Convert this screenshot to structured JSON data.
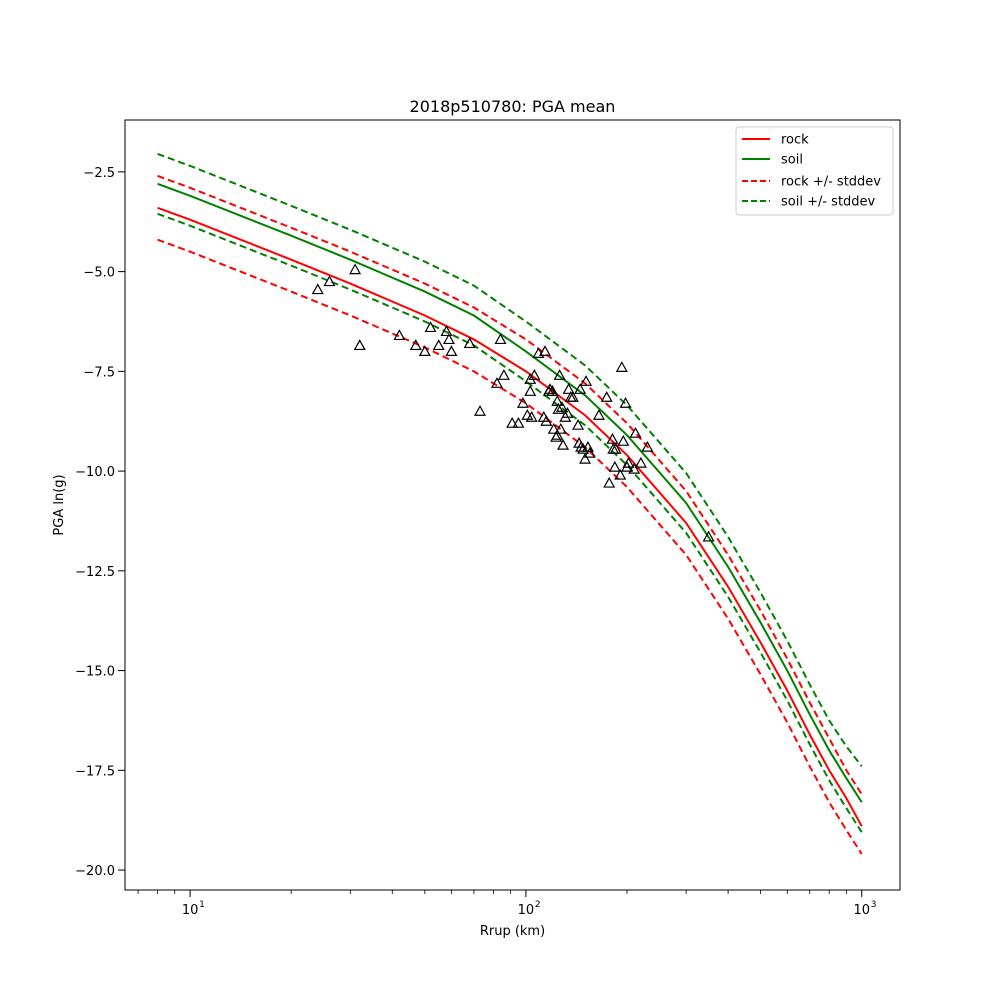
{
  "chart_data": {
    "type": "scatter",
    "title": "2018p510780: PGA mean",
    "xlabel": "Rrup (km)",
    "ylabel": "PGA ln(g)",
    "xscale": "log",
    "xlim": [
      6.4,
      1300
    ],
    "ylim": [
      -20.5,
      -1.2
    ],
    "grid": false,
    "legend_position": "top-right",
    "x_tick_values": [
      10,
      100,
      1000
    ],
    "x_tick_labels": [
      "10",
      "10",
      "10"
    ],
    "x_tick_exponents": [
      "1",
      "2",
      "3"
    ],
    "y_ticks": [
      -20.0,
      -17.5,
      -15.0,
      -12.5,
      -10.0,
      -7.5,
      -5.0,
      -2.5
    ],
    "y_tick_labels": [
      "−20.0",
      "−17.5",
      "−15.0",
      "−12.5",
      "−10.0",
      "−7.5",
      "−5.0",
      "−2.5"
    ],
    "lines": [
      {
        "name": "rock",
        "color": "#ff0000",
        "style": "solid",
        "x": [
          8,
          10,
          20,
          30,
          50,
          70,
          100,
          150,
          200,
          300,
          400,
          500,
          600,
          700,
          800,
          900,
          1000
        ],
        "y": [
          -3.4,
          -3.7,
          -4.7,
          -5.3,
          -6.1,
          -6.7,
          -7.5,
          -8.6,
          -9.6,
          -11.3,
          -12.9,
          -14.3,
          -15.5,
          -16.6,
          -17.5,
          -18.2,
          -18.9
        ]
      },
      {
        "name": "soil",
        "color": "#008000",
        "style": "solid",
        "x": [
          8,
          10,
          20,
          30,
          50,
          70,
          100,
          150,
          200,
          300,
          400,
          500,
          600,
          700,
          800,
          900,
          1000
        ],
        "y": [
          -2.8,
          -3.1,
          -4.1,
          -4.7,
          -5.5,
          -6.1,
          -7.0,
          -8.1,
          -9.1,
          -10.8,
          -12.4,
          -13.8,
          -15.0,
          -16.1,
          -17.0,
          -17.7,
          -18.3
        ]
      },
      {
        "name": "rock +/- stddev",
        "color": "#ff0000",
        "style": "dashed",
        "x": [
          8,
          10,
          20,
          30,
          50,
          70,
          100,
          150,
          200,
          300,
          400,
          500,
          600,
          700,
          800,
          900,
          1000
        ],
        "y": [
          -2.6,
          -2.9,
          -3.9,
          -4.5,
          -5.3,
          -5.9,
          -6.7,
          -7.8,
          -8.8,
          -10.5,
          -12.1,
          -13.5,
          -14.7,
          -15.8,
          -16.7,
          -17.5,
          -18.1
        ]
      },
      {
        "name": "",
        "color": "#ff0000",
        "style": "dashed",
        "x": [
          8,
          10,
          20,
          30,
          50,
          70,
          100,
          150,
          200,
          300,
          400,
          500,
          600,
          700,
          800,
          900,
          1000
        ],
        "y": [
          -4.2,
          -4.5,
          -5.5,
          -6.1,
          -6.9,
          -7.5,
          -8.3,
          -9.4,
          -10.4,
          -12.1,
          -13.7,
          -15.1,
          -16.3,
          -17.4,
          -18.3,
          -19.0,
          -19.6
        ]
      },
      {
        "name": "soil +/- stddev",
        "color": "#008000",
        "style": "dashed",
        "x": [
          8,
          10,
          20,
          30,
          50,
          70,
          100,
          150,
          200,
          300,
          400,
          500,
          600,
          700,
          800,
          900,
          1000
        ],
        "y": [
          -2.05,
          -2.35,
          -3.35,
          -3.95,
          -4.75,
          -5.35,
          -6.25,
          -7.35,
          -8.35,
          -10.05,
          -11.65,
          -13.05,
          -14.25,
          -15.35,
          -16.25,
          -16.9,
          -17.4
        ]
      },
      {
        "name": "",
        "color": "#008000",
        "style": "dashed",
        "x": [
          8,
          10,
          20,
          30,
          50,
          70,
          100,
          150,
          200,
          300,
          400,
          500,
          600,
          700,
          800,
          900,
          1000
        ],
        "y": [
          -3.55,
          -3.85,
          -4.85,
          -5.45,
          -6.25,
          -6.85,
          -7.75,
          -8.85,
          -9.85,
          -11.55,
          -13.15,
          -14.55,
          -15.75,
          -16.85,
          -17.75,
          -18.45,
          -19.05
        ]
      }
    ],
    "points": {
      "marker": "triangle",
      "x": [
        24,
        26,
        31,
        32,
        42,
        47,
        50,
        52,
        55,
        58,
        59,
        60,
        68,
        73,
        82,
        84,
        86,
        91,
        95,
        98,
        101,
        103,
        103,
        104,
        106,
        109,
        113,
        114,
        115,
        117,
        118,
        120,
        121,
        123,
        124,
        124,
        125,
        126,
        127,
        128,
        129,
        131,
        133,
        134,
        136,
        138,
        143,
        144,
        145,
        146,
        148,
        150,
        151,
        153,
        155,
        165,
        174,
        177,
        181,
        182,
        184,
        185,
        191,
        193,
        195,
        198,
        200,
        202,
        210,
        212,
        220,
        230,
        350
      ],
      "y": [
        -5.45,
        -5.25,
        -4.95,
        -6.85,
        -6.6,
        -6.85,
        -7.0,
        -6.4,
        -6.85,
        -6.5,
        -6.7,
        -7.0,
        -6.8,
        -8.5,
        -7.8,
        -6.7,
        -7.6,
        -8.8,
        -8.8,
        -8.3,
        -8.6,
        -7.7,
        -8.0,
        -8.65,
        -7.6,
        -7.05,
        -8.65,
        -7.0,
        -8.75,
        -8.0,
        -7.95,
        -8.0,
        -8.95,
        -9.15,
        -9.1,
        -8.25,
        -8.45,
        -7.6,
        -8.95,
        -8.4,
        -9.35,
        -8.65,
        -8.55,
        -7.95,
        -8.15,
        -8.15,
        -8.85,
        -9.3,
        -7.95,
        -9.4,
        -9.45,
        -9.7,
        -7.75,
        -9.4,
        -9.55,
        -8.6,
        -8.15,
        -10.3,
        -9.2,
        -9.45,
        -9.9,
        -9.45,
        -10.1,
        -7.4,
        -9.25,
        -8.3,
        -9.9,
        -9.8,
        -9.95,
        -9.05,
        -9.8,
        -9.4,
        -11.65
      ]
    },
    "legend": [
      "rock",
      "soil",
      "rock +/- stddev",
      "soil +/- stddev"
    ]
  }
}
